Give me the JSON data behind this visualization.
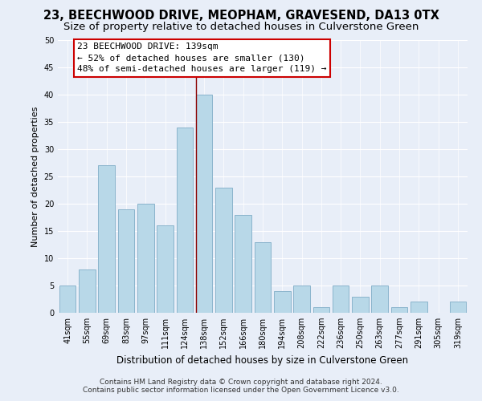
{
  "title": "23, BEECHWOOD DRIVE, MEOPHAM, GRAVESEND, DA13 0TX",
  "subtitle": "Size of property relative to detached houses in Culverstone Green",
  "xlabel": "Distribution of detached houses by size in Culverstone Green",
  "ylabel": "Number of detached properties",
  "footnote1": "Contains HM Land Registry data © Crown copyright and database right 2024.",
  "footnote2": "Contains public sector information licensed under the Open Government Licence v3.0.",
  "bar_labels": [
    "41sqm",
    "55sqm",
    "69sqm",
    "83sqm",
    "97sqm",
    "111sqm",
    "124sqm",
    "138sqm",
    "152sqm",
    "166sqm",
    "180sqm",
    "194sqm",
    "208sqm",
    "222sqm",
    "236sqm",
    "250sqm",
    "263sqm",
    "277sqm",
    "291sqm",
    "305sqm",
    "319sqm"
  ],
  "bar_values": [
    5,
    8,
    27,
    19,
    20,
    16,
    34,
    40,
    23,
    18,
    13,
    4,
    5,
    1,
    5,
    3,
    5,
    1,
    2,
    0,
    2
  ],
  "bar_color": "#b8d8e8",
  "bar_edge_color": "#8ab4cc",
  "highlight_bar_index": 7,
  "highlight_line_color": "#8b0000",
  "annotation_title": "23 BEECHWOOD DRIVE: 139sqm",
  "annotation_line1": "← 52% of detached houses are smaller (130)",
  "annotation_line2": "48% of semi-detached houses are larger (119) →",
  "annotation_box_facecolor": "#ffffff",
  "annotation_box_edgecolor": "#cc0000",
  "ylim": [
    0,
    50
  ],
  "yticks": [
    0,
    5,
    10,
    15,
    20,
    25,
    30,
    35,
    40,
    45,
    50
  ],
  "bg_color": "#e8eef8",
  "plot_bg_color": "#e8eef8",
  "grid_color": "#ffffff",
  "title_fontsize": 10.5,
  "subtitle_fontsize": 9.5,
  "ylabel_fontsize": 8,
  "xlabel_fontsize": 8.5,
  "tick_fontsize": 7,
  "footnote_fontsize": 6.5
}
